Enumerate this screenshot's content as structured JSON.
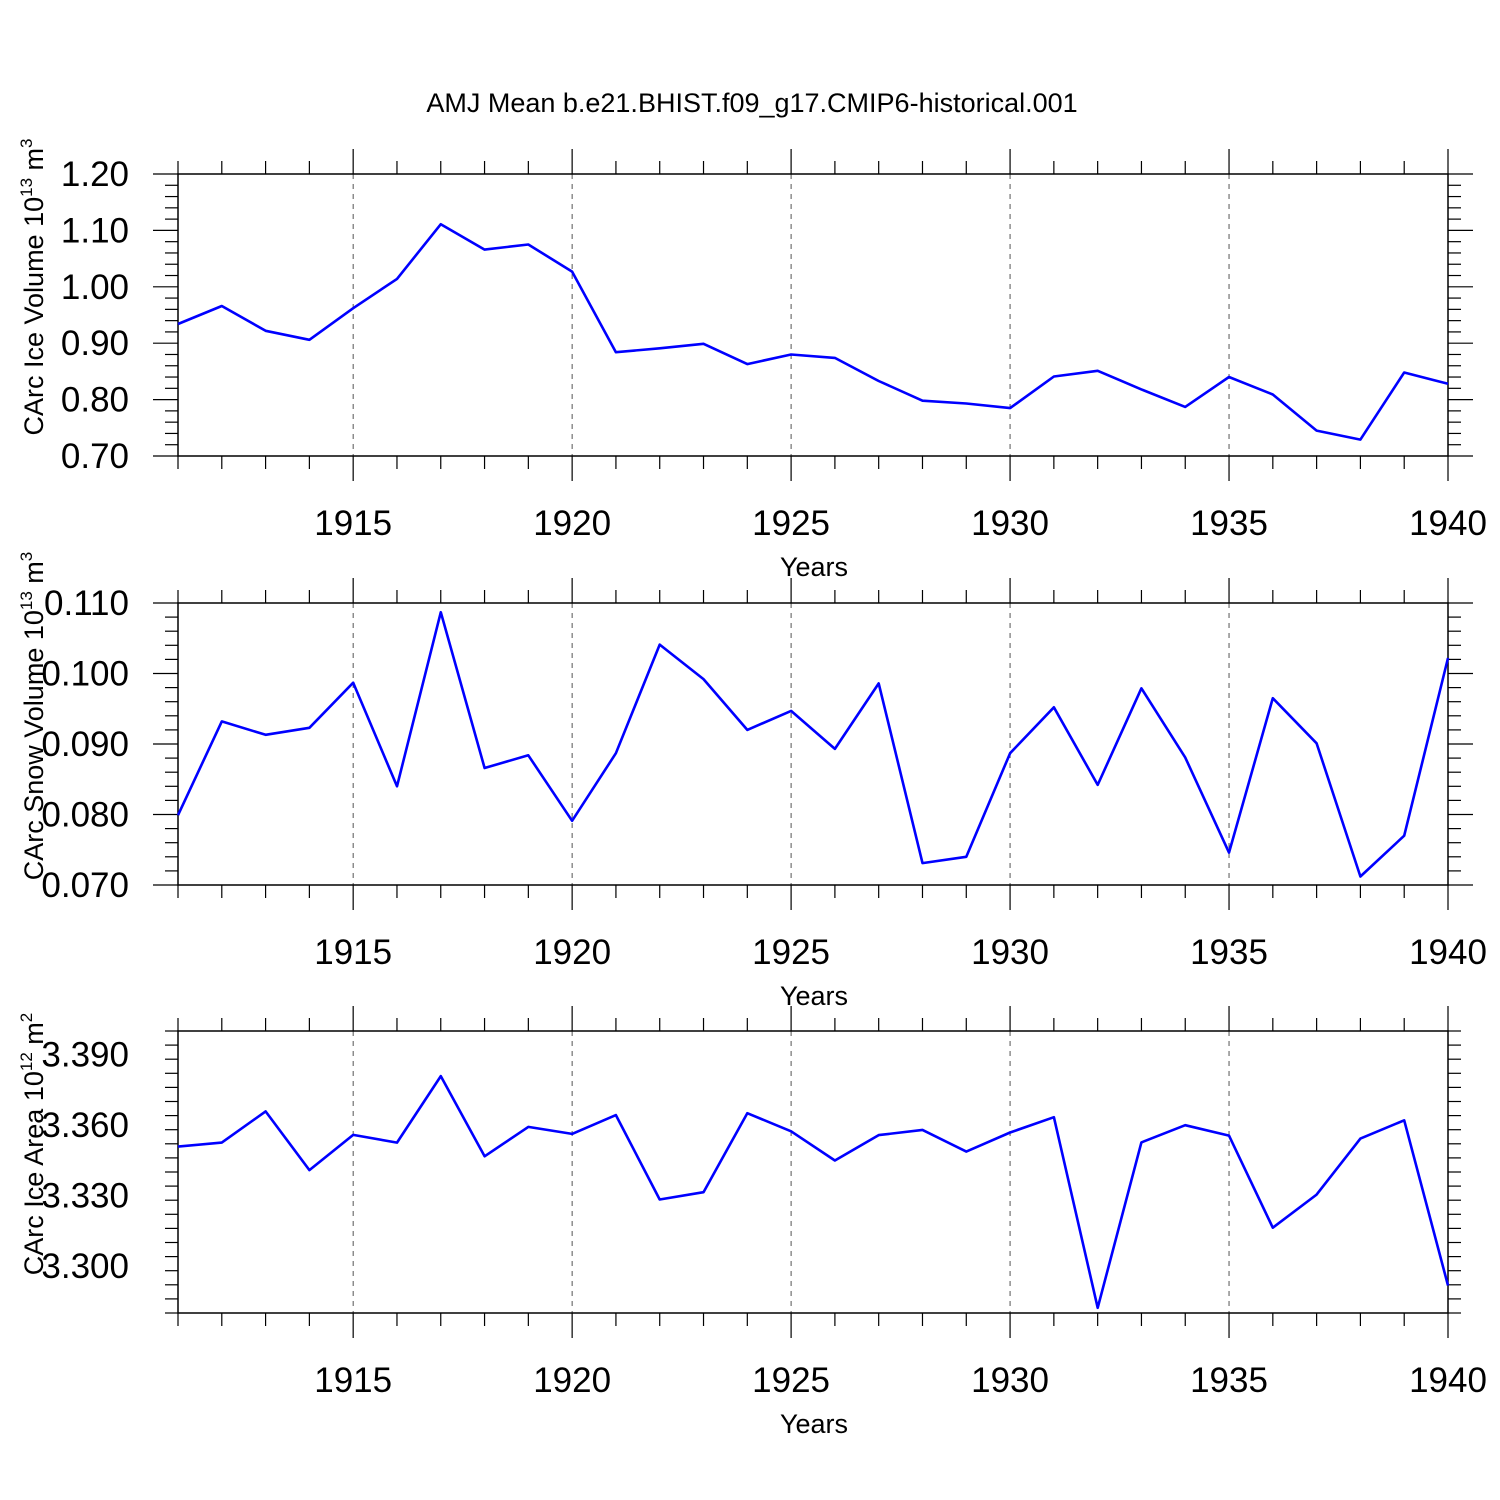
{
  "title": "AMJ Mean b.e21.BHIST.f09_g17.CMIP6-historical.001",
  "colors": {
    "line": "#0000ff",
    "axis": "#000000",
    "grid": "#555555"
  },
  "chart_data": [
    {
      "type": "line",
      "xlabel": "Years",
      "ylabel_main": "CArc Ice Volume 10",
      "ylabel_exp": "13",
      "ylabel_unit": " m",
      "ylabel_unit_exp": "3",
      "xlim": [
        1911,
        1940
      ],
      "ylim": [
        0.7,
        1.2
      ],
      "x_ticks": [
        1915,
        1920,
        1925,
        1930,
        1935,
        1940
      ],
      "x_tick_labels": [
        "1915",
        "1920",
        "1925",
        "1930",
        "1935",
        "1940"
      ],
      "y_ticks": [
        0.7,
        0.8,
        0.9,
        1.0,
        1.1,
        1.2
      ],
      "y_tick_labels": [
        "0.70",
        "0.80",
        "0.90",
        "1.00",
        "1.10",
        "1.20"
      ],
      "grid": "vertical dashed at major x ticks",
      "x": [
        1911,
        1912,
        1913,
        1914,
        1915,
        1916,
        1917,
        1918,
        1919,
        1920,
        1921,
        1922,
        1923,
        1924,
        1925,
        1926,
        1927,
        1928,
        1929,
        1930,
        1931,
        1932,
        1933,
        1934,
        1935,
        1936,
        1937,
        1938,
        1939,
        1940
      ],
      "values": [
        0.934,
        0.966,
        0.922,
        0.906,
        0.962,
        1.014,
        1.111,
        1.066,
        1.075,
        1.027,
        0.884,
        0.891,
        0.899,
        0.863,
        0.88,
        0.874,
        0.833,
        0.798,
        0.793,
        0.785,
        0.841,
        0.851,
        0.818,
        0.787,
        0.84,
        0.809,
        0.745,
        0.729,
        0.848,
        0.828
      ]
    },
    {
      "type": "line",
      "xlabel": "Years",
      "ylabel_main": "CArc Snow Volume 10",
      "ylabel_exp": "13",
      "ylabel_unit": " m",
      "ylabel_unit_exp": "3",
      "xlim": [
        1911,
        1940
      ],
      "ylim": [
        0.07,
        0.11
      ],
      "x_ticks": [
        1915,
        1920,
        1925,
        1930,
        1935,
        1940
      ],
      "x_tick_labels": [
        "1915",
        "1920",
        "1925",
        "1930",
        "1935",
        "1940"
      ],
      "y_ticks": [
        0.07,
        0.08,
        0.09,
        0.1,
        0.11
      ],
      "y_tick_labels": [
        "0.070",
        "0.080",
        "0.090",
        "0.100",
        "0.110"
      ],
      "grid": "vertical dashed at major x ticks",
      "x": [
        1911,
        1912,
        1913,
        1914,
        1915,
        1916,
        1917,
        1918,
        1919,
        1920,
        1921,
        1922,
        1923,
        1924,
        1925,
        1926,
        1927,
        1928,
        1929,
        1930,
        1931,
        1932,
        1933,
        1934,
        1935,
        1936,
        1937,
        1938,
        1939,
        1940
      ],
      "values": [
        0.0799,
        0.0932,
        0.0913,
        0.0923,
        0.0987,
        0.084,
        0.1087,
        0.0866,
        0.0884,
        0.0791,
        0.0887,
        0.1041,
        0.0992,
        0.092,
        0.0947,
        0.0893,
        0.0986,
        0.0731,
        0.074,
        0.0887,
        0.0952,
        0.0842,
        0.0979,
        0.0881,
        0.0746,
        0.0965,
        0.0901,
        0.0712,
        0.077,
        0.1022
      ]
    },
    {
      "type": "line",
      "xlabel": "Years",
      "ylabel_main": "CArc Ice Area 10",
      "ylabel_exp": "12",
      "ylabel_unit": " m",
      "ylabel_unit_exp": "2",
      "xlim": [
        1911,
        1940
      ],
      "ylim": [
        3.28,
        3.4
      ],
      "x_ticks": [
        1915,
        1920,
        1925,
        1930,
        1935,
        1940
      ],
      "x_tick_labels": [
        "1915",
        "1920",
        "1925",
        "1930",
        "1935",
        "1940"
      ],
      "y_ticks": [
        3.3,
        3.33,
        3.36,
        3.39
      ],
      "y_tick_labels": [
        "3.300",
        "3.330",
        "3.360",
        "3.390"
      ],
      "grid": "vertical dashed at major x ticks",
      "x": [
        1911,
        1912,
        1913,
        1914,
        1915,
        1916,
        1917,
        1918,
        1919,
        1920,
        1921,
        1922,
        1923,
        1924,
        1925,
        1926,
        1927,
        1928,
        1929,
        1930,
        1931,
        1932,
        1933,
        1934,
        1935,
        1936,
        1937,
        1938,
        1939,
        1940
      ],
      "values": [
        3.3508,
        3.3525,
        3.3658,
        3.3408,
        3.3558,
        3.3525,
        3.3808,
        3.3467,
        3.3592,
        3.3562,
        3.3642,
        3.3283,
        3.3314,
        3.365,
        3.3573,
        3.3449,
        3.3557,
        3.3579,
        3.3487,
        3.3568,
        3.3633,
        3.2822,
        3.3526,
        3.3599,
        3.3555,
        3.3163,
        3.3304,
        3.3542,
        3.362,
        3.2917
      ]
    }
  ]
}
